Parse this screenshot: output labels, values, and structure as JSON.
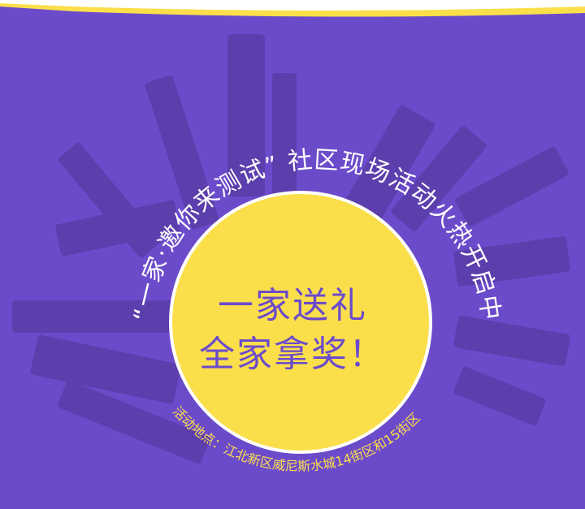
{
  "poster": {
    "headline": "“一家·邀你来测试” 社区现场活动火热开启中",
    "center_line_1": "一家送礼",
    "center_line_2": "全家拿奖！",
    "location": "活动地点：江北新区威尼斯水城14街区和15街区"
  },
  "colors": {
    "background": "#6c4bcb",
    "circle": "#fadf4b",
    "circle_border": "#ffffff",
    "banner_yellow": "#fadf4b",
    "buildings": "#5a3da8"
  }
}
